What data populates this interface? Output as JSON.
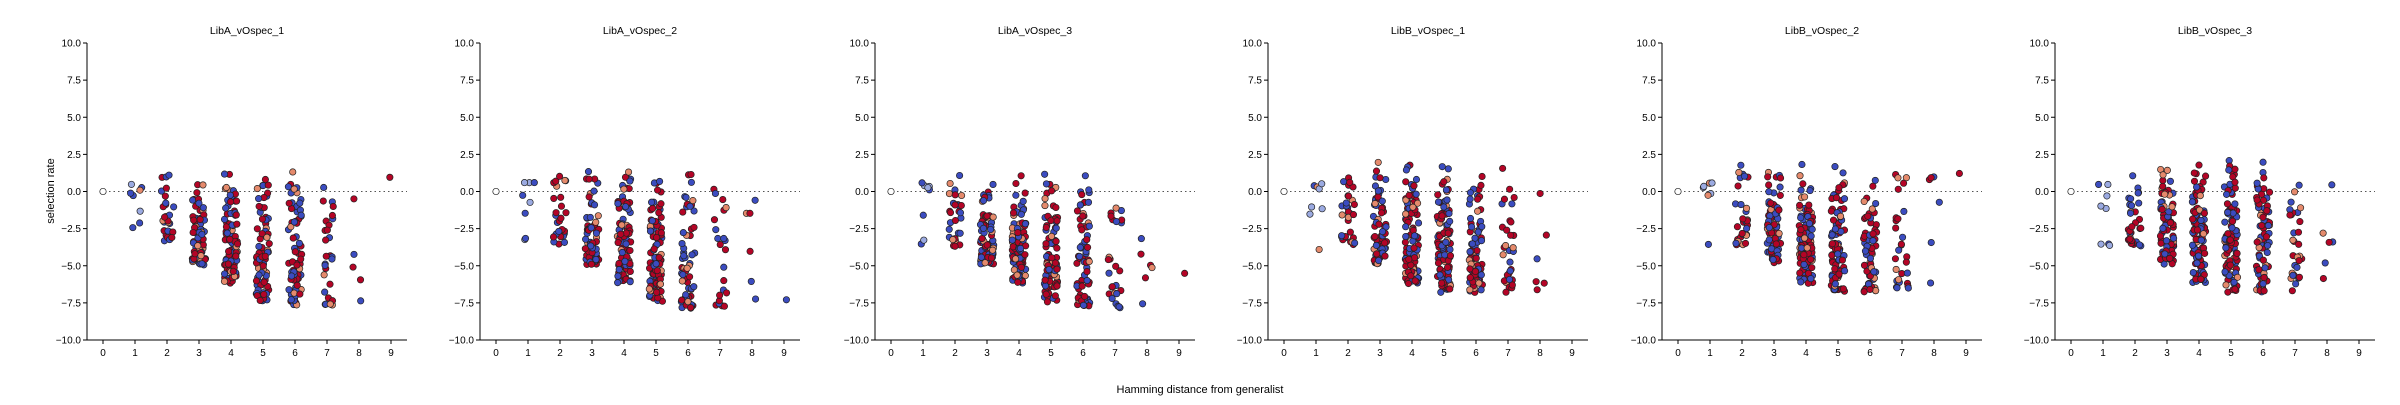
{
  "figure": {
    "xlabel": "Hamming distance from generalist",
    "ylabel": "selection rate"
  },
  "chart_data": [
    {
      "type": "scatter",
      "title": "LibA_vOspec_1",
      "xlim": [
        -0.5,
        9.5
      ],
      "ylim": [
        -10,
        10
      ],
      "xticks": [
        "0",
        "1",
        "2",
        "3",
        "4",
        "5",
        "6",
        "7",
        "8",
        "9"
      ],
      "yticks": [
        "10.0",
        "7.5",
        "5.0",
        "2.5",
        "0.0",
        "−2.5",
        "−5.0",
        "−7.5",
        "−10.0"
      ],
      "reference_line": 0,
      "points_per_distance": [
        1,
        8,
        28,
        70,
        90,
        82,
        74,
        28,
        5,
        1
      ],
      "value_range": [
        -7.8,
        1.9
      ],
      "colors": {
        "generalist": "#ffffff",
        "low": "#3b4cc0",
        "mid": "#e58a6c",
        "high": "#b40426"
      }
    },
    {
      "type": "scatter",
      "title": "LibA_vOspec_2",
      "xlim": [
        -0.5,
        9.5
      ],
      "ylim": [
        -10,
        10
      ],
      "xticks": [
        "0",
        "1",
        "2",
        "3",
        "4",
        "5",
        "6",
        "7",
        "8",
        "9"
      ],
      "yticks": [
        "10.0",
        "7.5",
        "5.0",
        "2.5",
        "0.0",
        "−2.5",
        "−5.0",
        "−7.5",
        "−10.0"
      ],
      "reference_line": 0,
      "points_per_distance": [
        1,
        8,
        26,
        66,
        92,
        96,
        58,
        22,
        6,
        1
      ],
      "value_range": [
        -7.9,
        1.8
      ],
      "colors": {
        "generalist": "#ffffff",
        "low": "#3b4cc0",
        "mid": "#e58a6c",
        "high": "#b40426"
      }
    },
    {
      "type": "scatter",
      "title": "LibA_vOspec_3",
      "xlim": [
        -0.5,
        9.5
      ],
      "ylim": [
        -10,
        10
      ],
      "xticks": [
        "0",
        "1",
        "2",
        "3",
        "4",
        "5",
        "6",
        "7",
        "8",
        "9"
      ],
      "yticks": [
        "10.0",
        "7.5",
        "5.0",
        "2.5",
        "0.0",
        "−2.5",
        "−5.0",
        "−7.5",
        "−10.0"
      ],
      "reference_line": 0,
      "points_per_distance": [
        1,
        8,
        28,
        72,
        98,
        90,
        66,
        26,
        6,
        1
      ],
      "value_range": [
        -7.9,
        1.7
      ],
      "colors": {
        "generalist": "#ffffff",
        "low": "#3b4cc0",
        "mid": "#e58a6c",
        "high": "#b40426"
      }
    },
    {
      "type": "scatter",
      "title": "LibB_vOspec_1",
      "xlim": [
        -0.5,
        9.5
      ],
      "ylim": [
        -10,
        10
      ],
      "xticks": [
        "0",
        "1",
        "2",
        "3",
        "4",
        "5",
        "6",
        "7",
        "8",
        "9"
      ],
      "yticks": [
        "10.0",
        "7.5",
        "5.0",
        "2.5",
        "0.0",
        "−2.5",
        "−5.0",
        "−7.5",
        "−10.0"
      ],
      "reference_line": 0,
      "points_per_distance": [
        1,
        8,
        30,
        70,
        100,
        104,
        80,
        32,
        6,
        0
      ],
      "value_range": [
        -6.8,
        2.5
      ],
      "colors": {
        "generalist": "#ffffff",
        "low": "#3b4cc0",
        "mid": "#e58a6c",
        "high": "#b40426"
      }
    },
    {
      "type": "scatter",
      "title": "LibB_vOspec_2",
      "xlim": [
        -0.5,
        9.5
      ],
      "ylim": [
        -10,
        10
      ],
      "xticks": [
        "0",
        "1",
        "2",
        "3",
        "4",
        "5",
        "6",
        "7",
        "8",
        "9"
      ],
      "yticks": [
        "10.0",
        "7.5",
        "5.0",
        "2.5",
        "0.0",
        "−2.5",
        "−5.0",
        "−7.5",
        "−10.0"
      ],
      "reference_line": 0,
      "points_per_distance": [
        1,
        8,
        32,
        70,
        96,
        94,
        70,
        28,
        6,
        1
      ],
      "value_range": [
        -6.8,
        2.6
      ],
      "colors": {
        "generalist": "#ffffff",
        "low": "#3b4cc0",
        "mid": "#e58a6c",
        "high": "#b40426"
      }
    },
    {
      "type": "scatter",
      "title": "LibB_vOspec_3",
      "xlim": [
        -0.5,
        9.5
      ],
      "ylim": [
        -10,
        10
      ],
      "xticks": [
        "0",
        "1",
        "2",
        "3",
        "4",
        "5",
        "6",
        "7",
        "8",
        "9"
      ],
      "yticks": [
        "10.0",
        "7.5",
        "5.0",
        "2.5",
        "0.0",
        "−2.5",
        "−5.0",
        "−7.5",
        "−10.0"
      ],
      "reference_line": 0,
      "points_per_distance": [
        1,
        8,
        34,
        76,
        106,
        104,
        80,
        30,
        6,
        0
      ],
      "value_range": [
        -6.8,
        2.9
      ],
      "colors": {
        "generalist": "#ffffff",
        "low": "#3b4cc0",
        "mid": "#e58a6c",
        "high": "#b40426"
      }
    }
  ]
}
